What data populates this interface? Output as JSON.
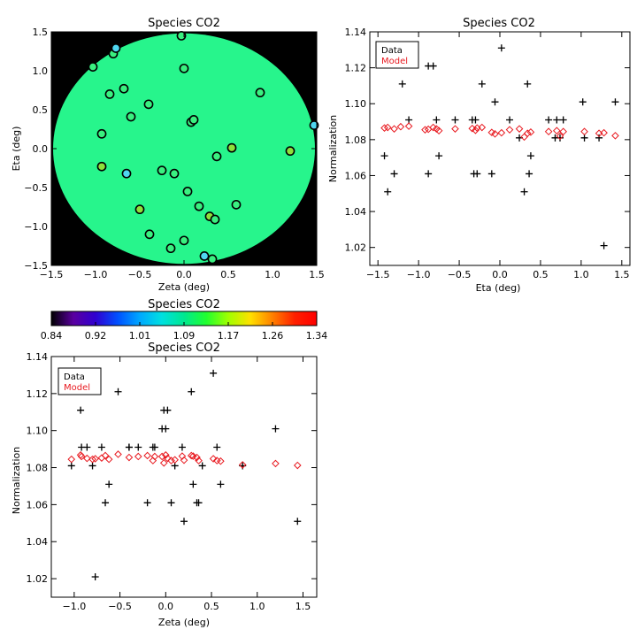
{
  "chart_data": [
    {
      "id": "map",
      "type": "scatter",
      "title": "Species CO2",
      "xlabel": "Zeta (deg)",
      "ylabel": "Eta (deg)",
      "xlim": [
        -1.5,
        1.5
      ],
      "ylim": [
        -1.5,
        1.5
      ],
      "xticks": [
        -1.5,
        -1.0,
        -0.5,
        0.0,
        0.5,
        1.0,
        1.5
      ],
      "yticks": [
        -1.5,
        -1.0,
        -0.5,
        0.0,
        0.5,
        1.0,
        1.5
      ],
      "xtick_labels": [
        "−1.5",
        "−1.0",
        "−0.5",
        "0.0",
        "0.5",
        "1.0",
        "1.5"
      ],
      "ytick_labels": [
        "−1.5",
        "−1.0",
        "−0.5",
        "0.0",
        "0.5",
        "1.0",
        "1.5"
      ],
      "background_color": "#000000",
      "field_color": "#27f58c",
      "field_radius": 1.48,
      "points": [
        {
          "x": -1.03,
          "y": 1.05,
          "c": "#3af080"
        },
        {
          "x": -0.8,
          "y": 1.22,
          "c": "#3af080"
        },
        {
          "x": -0.77,
          "y": 1.29,
          "c": "#4fd6f0"
        },
        {
          "x": -0.84,
          "y": 0.7,
          "c": "#3af080"
        },
        {
          "x": -0.68,
          "y": 0.77,
          "c": "#3af080"
        },
        {
          "x": -0.6,
          "y": 0.41,
          "c": "#3af080"
        },
        {
          "x": -0.93,
          "y": 0.19,
          "c": "#3af080"
        },
        {
          "x": -0.93,
          "y": -0.23,
          "c": "#8de03b"
        },
        {
          "x": -0.65,
          "y": -0.32,
          "c": "#4fd6f0"
        },
        {
          "x": -0.4,
          "y": 0.57,
          "c": "#3af080"
        },
        {
          "x": -0.25,
          "y": -0.28,
          "c": "#3af080"
        },
        {
          "x": -0.11,
          "y": -0.32,
          "c": "#3af080"
        },
        {
          "x": -0.5,
          "y": -0.78,
          "c": "#8de03b"
        },
        {
          "x": -0.39,
          "y": -1.1,
          "c": "#3af080"
        },
        {
          "x": -0.15,
          "y": -1.28,
          "c": "#3af080"
        },
        {
          "x": 0.0,
          "y": -1.18,
          "c": "#3af080"
        },
        {
          "x": 0.04,
          "y": -0.55,
          "c": "#3af080"
        },
        {
          "x": 0.17,
          "y": -0.74,
          "c": "#3af080"
        },
        {
          "x": 0.29,
          "y": -0.87,
          "c": "#8de03b"
        },
        {
          "x": 0.35,
          "y": -0.91,
          "c": "#3af080"
        },
        {
          "x": 0.59,
          "y": -0.72,
          "c": "#3af080"
        },
        {
          "x": 0.37,
          "y": -0.1,
          "c": "#3af080"
        },
        {
          "x": 0.54,
          "y": 0.01,
          "c": "#8de03b"
        },
        {
          "x": 0.08,
          "y": 0.34,
          "c": "#3af080"
        },
        {
          "x": 0.11,
          "y": 0.37,
          "c": "#3af080"
        },
        {
          "x": 0.0,
          "y": 1.03,
          "c": "#3af080"
        },
        {
          "x": -0.03,
          "y": 1.45,
          "c": "#3af080"
        },
        {
          "x": 0.86,
          "y": 0.72,
          "c": "#3af080"
        },
        {
          "x": 1.2,
          "y": -0.03,
          "c": "#8de03b"
        },
        {
          "x": 1.47,
          "y": 0.3,
          "c": "#4fd6f0"
        },
        {
          "x": 0.23,
          "y": -1.38,
          "c": "#4fd6f0"
        },
        {
          "x": 0.32,
          "y": -1.42,
          "c": "#3af080"
        }
      ]
    },
    {
      "id": "eta",
      "type": "scatter",
      "title": "Species CO2",
      "xlabel": "Eta (deg)",
      "ylabel": "Normalization",
      "xlim": [
        -1.6,
        1.6
      ],
      "ylim": [
        1.01,
        1.14
      ],
      "xticks": [
        -1.5,
        -1.0,
        -0.5,
        0.0,
        0.5,
        1.0,
        1.5
      ],
      "yticks": [
        1.02,
        1.04,
        1.06,
        1.08,
        1.1,
        1.12,
        1.14
      ],
      "xtick_labels": [
        "−1.5",
        "−1.0",
        "−0.5",
        "0.0",
        "0.5",
        "1.0",
        "1.5"
      ],
      "ytick_labels": [
        "1.02",
        "1.04",
        "1.06",
        "1.08",
        "1.10",
        "1.12",
        "1.14"
      ],
      "legend": {
        "data_label": "Data",
        "model_label": "Model",
        "position": "top-left"
      },
      "series": [
        {
          "name": "Data",
          "marker": "plus",
          "color": "#000000",
          "x": [
            -1.42,
            -1.38,
            -1.3,
            -1.2,
            -1.12,
            -0.88,
            -0.82,
            -0.78,
            -0.75,
            -0.88,
            -0.55,
            -0.34,
            -0.3,
            -0.28,
            -0.32,
            -0.22,
            -0.1,
            -0.06,
            0.02,
            0.12,
            0.24,
            0.3,
            0.34,
            0.36,
            0.38,
            0.6,
            0.7,
            0.74,
            0.78,
            1.02,
            1.04,
            1.28,
            1.22,
            1.42,
            0.68
          ],
          "y": [
            1.071,
            1.051,
            1.061,
            1.111,
            1.091,
            1.121,
            1.121,
            1.091,
            1.071,
            1.061,
            1.091,
            1.091,
            1.091,
            1.061,
            1.061,
            1.111,
            1.061,
            1.101,
            1.131,
            1.091,
            1.081,
            1.051,
            1.111,
            1.061,
            1.071,
            1.091,
            1.091,
            1.081,
            1.091,
            1.101,
            1.081,
            1.021,
            1.081,
            1.101,
            1.081
          ]
        },
        {
          "name": "Model",
          "marker": "diamond",
          "color": "#e8191f",
          "x": [
            -1.42,
            -1.38,
            -1.3,
            -1.22,
            -1.12,
            -0.92,
            -0.88,
            -0.82,
            -0.78,
            -0.75,
            -0.55,
            -0.34,
            -0.3,
            -0.28,
            -0.22,
            -0.1,
            -0.06,
            0.02,
            0.12,
            0.24,
            0.3,
            0.34,
            0.38,
            0.6,
            0.7,
            0.74,
            0.78,
            1.04,
            1.28,
            1.22,
            1.42
          ],
          "y": [
            1.0865,
            1.0868,
            1.086,
            1.0872,
            1.0875,
            1.0855,
            1.0858,
            1.0868,
            1.086,
            1.085,
            1.086,
            1.0862,
            1.0852,
            1.0865,
            1.0868,
            1.084,
            1.0832,
            1.0838,
            1.0855,
            1.086,
            1.0815,
            1.0835,
            1.0842,
            1.0845,
            1.085,
            1.082,
            1.0845,
            1.0845,
            1.0838,
            1.0835,
            1.0822
          ]
        }
      ]
    },
    {
      "id": "colorbar",
      "type": "heatmap",
      "title": "Species CO2",
      "range": [
        0.84,
        1.34
      ],
      "tick_labels": [
        "0.84",
        "0.92",
        "1.01",
        "1.09",
        "1.17",
        "1.26",
        "1.34"
      ],
      "colors": [
        "#000000",
        "#5a00a0",
        "#3000d0",
        "#0050ff",
        "#00a8ff",
        "#00e0e0",
        "#00e890",
        "#20ff30",
        "#a0ff00",
        "#ffe000",
        "#ff8000",
        "#ff2000",
        "#ff0000"
      ]
    },
    {
      "id": "zeta",
      "type": "scatter",
      "title": "Species CO2",
      "xlabel": "Zeta (deg)",
      "ylabel": "Normalization",
      "xlim": [
        -1.25,
        1.65
      ],
      "ylim": [
        1.01,
        1.14
      ],
      "xticks": [
        -1.0,
        -0.5,
        0.0,
        0.5,
        1.0,
        1.5
      ],
      "yticks": [
        1.02,
        1.04,
        1.06,
        1.08,
        1.1,
        1.12,
        1.14
      ],
      "xtick_labels": [
        "−1.0",
        "−0.5",
        "0.0",
        "0.5",
        "1.0",
        "1.5"
      ],
      "ytick_labels": [
        "1.02",
        "1.04",
        "1.06",
        "1.08",
        "1.10",
        "1.12",
        "1.14"
      ],
      "legend": {
        "data_label": "Data",
        "model_label": "Model",
        "position": "top-left"
      },
      "series": [
        {
          "name": "Data",
          "marker": "plus",
          "color": "#000000",
          "x": [
            -1.03,
            -0.93,
            -0.92,
            -0.86,
            -0.8,
            -0.77,
            -0.7,
            -0.66,
            -0.62,
            -0.52,
            -0.4,
            -0.4,
            -0.3,
            -0.2,
            -0.14,
            -0.12,
            -0.04,
            -0.02,
            0.0,
            0.02,
            0.06,
            0.1,
            0.18,
            0.2,
            0.28,
            0.3,
            0.34,
            0.36,
            0.4,
            0.52,
            0.56,
            0.6,
            0.84,
            1.2,
            1.44
          ],
          "y": [
            1.081,
            1.111,
            1.091,
            1.091,
            1.081,
            1.021,
            1.091,
            1.061,
            1.071,
            1.121,
            1.091,
            1.091,
            1.091,
            1.061,
            1.091,
            1.091,
            1.101,
            1.111,
            1.101,
            1.111,
            1.061,
            1.081,
            1.091,
            1.051,
            1.121,
            1.071,
            1.061,
            1.061,
            1.081,
            1.131,
            1.091,
            1.071,
            1.081,
            1.101,
            1.051
          ]
        },
        {
          "name": "Model",
          "marker": "diamond",
          "color": "#e8191f",
          "x": [
            -1.03,
            -0.93,
            -0.92,
            -0.86,
            -0.8,
            -0.77,
            -0.7,
            -0.66,
            -0.62,
            -0.52,
            -0.4,
            -0.3,
            -0.2,
            -0.14,
            -0.12,
            -0.04,
            -0.02,
            0.0,
            0.02,
            0.06,
            0.1,
            0.18,
            0.2,
            0.28,
            0.3,
            0.34,
            0.36,
            0.52,
            0.56,
            0.6,
            0.84,
            1.2,
            1.44
          ],
          "y": [
            1.0845,
            1.0868,
            1.086,
            1.085,
            1.0845,
            1.0848,
            1.0852,
            1.0865,
            1.0845,
            1.0872,
            1.0855,
            1.086,
            1.0865,
            1.0838,
            1.086,
            1.086,
            1.0825,
            1.0868,
            1.085,
            1.0838,
            1.0842,
            1.0862,
            1.084,
            1.0865,
            1.0862,
            1.0855,
            1.0838,
            1.0848,
            1.0838,
            1.0835,
            1.0815,
            1.0822,
            1.0812
          ]
        }
      ]
    }
  ]
}
